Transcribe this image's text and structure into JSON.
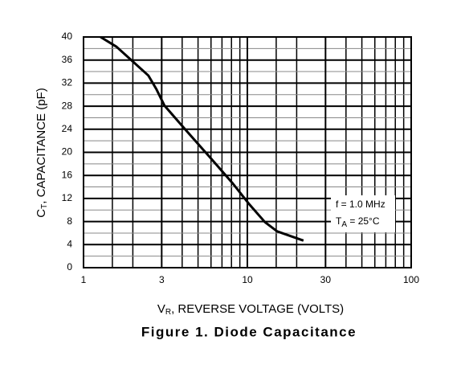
{
  "chart_data": {
    "type": "line",
    "title": "Figure 1. Diode Capacitance",
    "xlabel": {
      "main": "V",
      "sub": "R",
      "rest": ", REVERSE VOLTAGE (VOLTS)"
    },
    "ylabel": {
      "main": "C",
      "sub": "T",
      "rest": ", CAPACITANCE (pF)"
    },
    "annotation": {
      "line1": "f = 1.0 MHz",
      "line2_main": "T",
      "line2_sub": "A",
      "line2_rest": " = 25°C"
    },
    "x_log": true,
    "xlim": [
      1,
      100
    ],
    "xticks": [
      1,
      3,
      10,
      30,
      100
    ],
    "x_minor_grid": [
      1.5,
      2,
      4,
      5,
      6,
      7,
      8,
      9,
      15,
      20,
      40,
      50,
      60,
      70,
      80,
      90
    ],
    "ylim": [
      0,
      40
    ],
    "yticks": [
      0,
      4,
      8,
      12,
      16,
      20,
      24,
      28,
      32,
      36,
      40
    ],
    "y_minor_grid": [
      2,
      6,
      10,
      14,
      18,
      22,
      26,
      30,
      34,
      38
    ],
    "grid": true,
    "series": [
      {
        "color": "#000000",
        "x": [
          1.27,
          1.59,
          1.99,
          2.49,
          2.79,
          3.12,
          4.14,
          5.8,
          8.15,
          10.2,
          12.8,
          15.2,
          22.0
        ],
        "values": [
          40,
          38.3,
          35.8,
          33.3,
          30.9,
          28.1,
          24.1,
          19.4,
          14.6,
          11.1,
          7.9,
          6.3,
          4.7
        ]
      }
    ]
  }
}
